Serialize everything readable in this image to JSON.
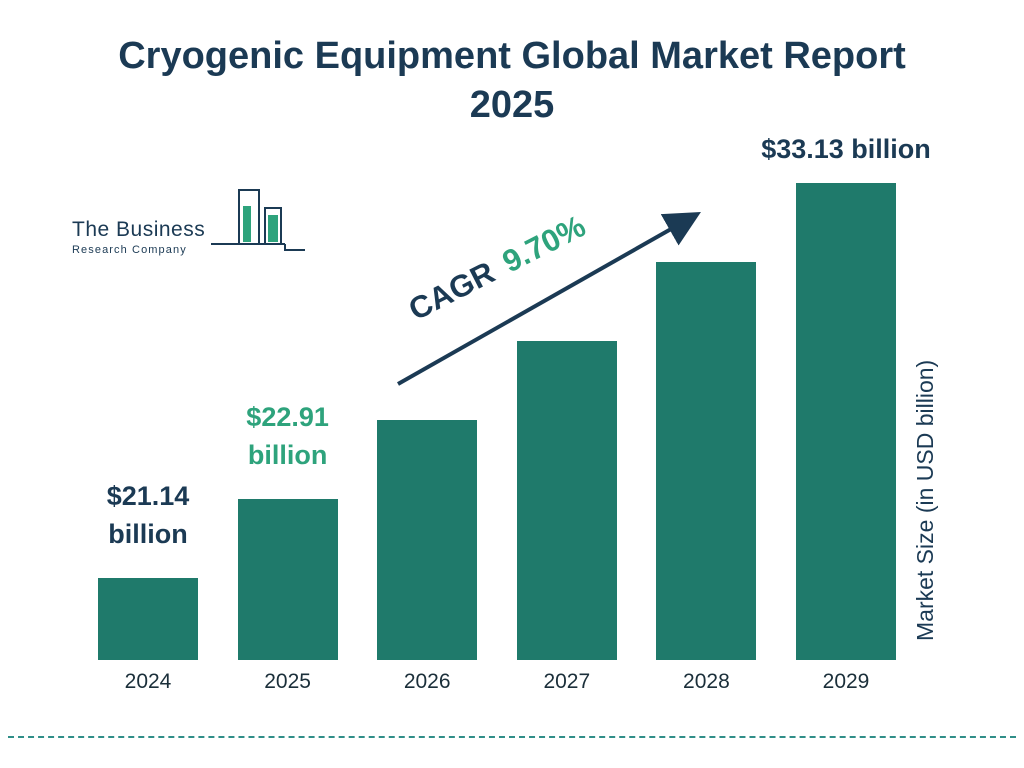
{
  "title": {
    "line1": "Cryogenic Equipment Global Market Report",
    "line2": "2025"
  },
  "logo": {
    "line1": "The Business",
    "line2": "Research Company"
  },
  "cagr": {
    "prefix": "CAGR",
    "value": "9.70%"
  },
  "ylabel": "Market Size (in USD billion)",
  "chart_data": {
    "type": "bar",
    "title": "Cryogenic Equipment Global Market Report 2025",
    "categories": [
      "2024",
      "2025",
      "2026",
      "2027",
      "2028",
      "2029"
    ],
    "values": [
      21.14,
      22.91,
      25.13,
      27.57,
      30.24,
      33.13
    ],
    "unit": "USD billion",
    "cagr_percent": 9.7,
    "xlabel": "",
    "ylabel": "Market Size (in USD billion)",
    "legend": "none",
    "grid": false,
    "labeled_points": [
      {
        "category": "2024",
        "label": "$21.14 billion",
        "two_line": true,
        "color_key": "navy"
      },
      {
        "category": "2025",
        "label": "$22.91 billion",
        "two_line": true,
        "color_key": "green"
      },
      {
        "category": "2029",
        "label": "$33.13 billion",
        "two_line": false,
        "color_key": "navy"
      }
    ]
  },
  "colors": {
    "navy": "#1B3A54",
    "green": "#2EA37C",
    "bar": "#1F7A6B",
    "dash": "#2F8E88"
  }
}
